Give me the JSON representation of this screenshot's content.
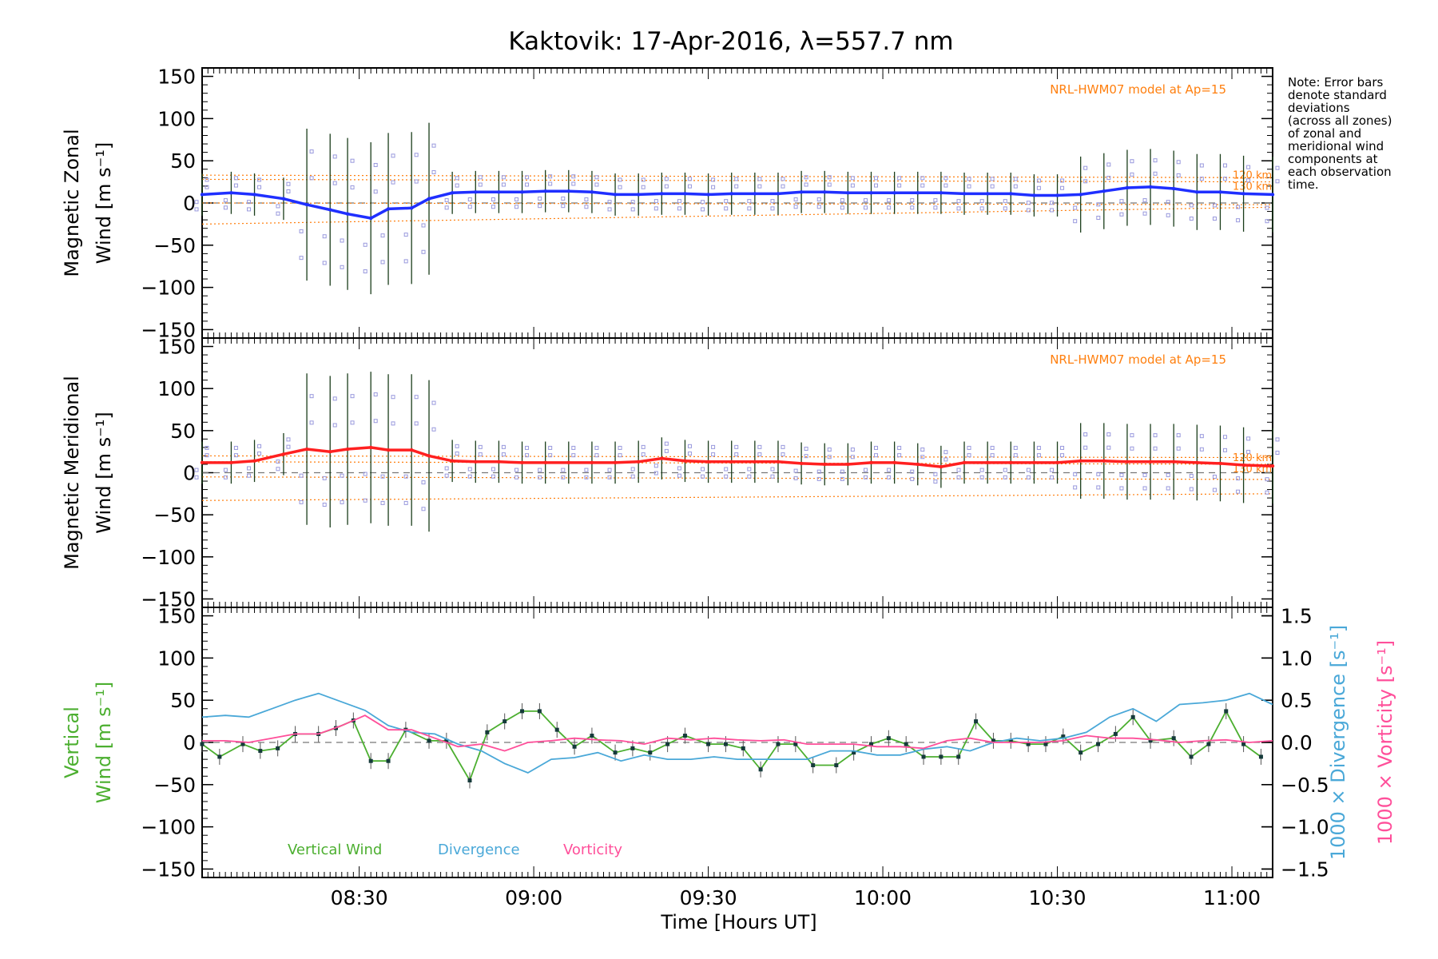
{
  "figure": {
    "title": "Kaktovik: 17-Apr-2016, λ=557.7 nm",
    "xlabel": "Time [Hours UT]",
    "note_lines": [
      "Note: Error bars",
      "denote standard",
      "deviations",
      "(across all zones)",
      "of zonal and",
      "meridional wind",
      "components at",
      "each observation",
      "time."
    ],
    "model_label": "NRL-HWM07 model at Ap=15",
    "alt_labels": [
      "120 km",
      "130 km"
    ]
  },
  "chart_data": [
    {
      "type": "line",
      "panel": "zonal",
      "ylabel": [
        "Magnetic Zonal",
        "Wind [m s⁻¹]"
      ],
      "ylim": [
        -160,
        160
      ],
      "yticks": [
        -150,
        -100,
        -50,
        0,
        50,
        100,
        150
      ],
      "xlim": [
        "08:03",
        "11:07"
      ],
      "xticks": [
        "08:30",
        "09:00",
        "09:30",
        "10:00",
        "10:30",
        "11:00"
      ],
      "colors": {
        "mean": "#1f2fff",
        "points": "#9999dd",
        "model": "#ff7f0e"
      },
      "series": [
        {
          "name": "mean",
          "x": [
            "08:03",
            "08:08",
            "08:12",
            "08:17",
            "08:21",
            "08:25",
            "08:28",
            "08:32",
            "08:35",
            "08:39",
            "08:42",
            "08:46",
            "08:50",
            "08:54",
            "08:58",
            "09:02",
            "09:06",
            "09:10",
            "09:14",
            "09:18",
            "09:22",
            "09:26",
            "09:30",
            "09:34",
            "09:38",
            "09:42",
            "09:46",
            "09:50",
            "09:54",
            "09:58",
            "10:02",
            "10:06",
            "10:10",
            "10:14",
            "10:18",
            "10:22",
            "10:26",
            "10:30",
            "10:34",
            "10:38",
            "10:42",
            "10:46",
            "10:50",
            "10:54",
            "10:58",
            "11:02",
            "11:07"
          ],
          "y": [
            10,
            12,
            10,
            5,
            -2,
            -8,
            -13,
            -18,
            -7,
            -6,
            5,
            12,
            13,
            13,
            13,
            14,
            14,
            13,
            10,
            10,
            11,
            11,
            10,
            11,
            11,
            11,
            13,
            13,
            12,
            12,
            12,
            12,
            12,
            11,
            11,
            11,
            9,
            9,
            10,
            14,
            18,
            19,
            17,
            13,
            13,
            11,
            10
          ]
        }
      ],
      "model_bounds": {
        "x": [
          "08:03",
          "11:07"
        ],
        "upper": [
          33,
          30
        ],
        "upper_lower": [
          28,
          25
        ],
        "lower_upper": [
          0,
          -2
        ],
        "lower": [
          -25,
          -5
        ]
      }
    },
    {
      "type": "line",
      "panel": "meridional",
      "ylabel": [
        "Magnetic Meridional",
        "Wind [m s⁻¹]"
      ],
      "ylim": [
        -160,
        160
      ],
      "yticks": [
        -150,
        -100,
        -50,
        0,
        50,
        100,
        150
      ],
      "xlim": [
        "08:03",
        "11:07"
      ],
      "colors": {
        "mean": "#ff2020",
        "points": "#9999dd",
        "model": "#ff7f0e"
      },
      "series": [
        {
          "name": "mean",
          "x": [
            "08:03",
            "08:08",
            "08:12",
            "08:17",
            "08:21",
            "08:25",
            "08:28",
            "08:32",
            "08:35",
            "08:39",
            "08:42",
            "08:46",
            "08:50",
            "08:54",
            "08:58",
            "09:02",
            "09:06",
            "09:10",
            "09:14",
            "09:18",
            "09:22",
            "09:26",
            "09:30",
            "09:34",
            "09:38",
            "09:42",
            "09:46",
            "09:50",
            "09:54",
            "09:58",
            "10:02",
            "10:06",
            "10:10",
            "10:14",
            "10:18",
            "10:22",
            "10:26",
            "10:30",
            "10:34",
            "10:38",
            "10:42",
            "10:46",
            "10:50",
            "10:54",
            "10:58",
            "11:02",
            "11:07"
          ],
          "y": [
            12,
            12,
            14,
            22,
            28,
            25,
            28,
            30,
            27,
            27,
            20,
            14,
            13,
            13,
            12,
            12,
            12,
            12,
            12,
            13,
            17,
            14,
            13,
            13,
            13,
            13,
            11,
            10,
            10,
            12,
            12,
            10,
            7,
            12,
            12,
            12,
            12,
            12,
            14,
            14,
            13,
            13,
            13,
            12,
            11,
            9,
            8
          ]
        }
      ],
      "model_bounds": {
        "x": [
          "08:03",
          "11:07"
        ],
        "upper": [
          20,
          18
        ],
        "upper_lower": [
          13,
          10
        ],
        "lower_upper": [
          -5,
          -8
        ],
        "lower": [
          -33,
          -25
        ]
      }
    },
    {
      "type": "line",
      "panel": "vertical",
      "ylabel": [
        "Vertical",
        "Wind [m s⁻¹]"
      ],
      "y2label": "1000 × Divergence [s⁻¹]",
      "y3label": "1000 × Vorticity [s⁻¹]",
      "ylim": [
        -160,
        160
      ],
      "yticks": [
        -150,
        -100,
        -50,
        0,
        50,
        100,
        150
      ],
      "y2lim": [
        -1.6,
        1.6
      ],
      "y2ticks": [
        -1.5,
        -1.0,
        -0.5,
        0.0,
        0.5,
        1.0,
        1.5
      ],
      "legend": [
        "Vertical Wind",
        "Divergence",
        "Vorticity"
      ],
      "colors": {
        "Vertical Wind": "#4caf30",
        "Divergence": "#4aa8d8",
        "Vorticity": "#ff4f9a"
      },
      "series": [
        {
          "name": "Vertical Wind",
          "x": [
            "08:03",
            "08:06",
            "08:10",
            "08:13",
            "08:16",
            "08:19",
            "08:23",
            "08:26",
            "08:29",
            "08:32",
            "08:35",
            "08:38",
            "08:42",
            "08:45",
            "08:49",
            "08:52",
            "08:55",
            "08:58",
            "09:01",
            "09:04",
            "09:07",
            "09:10",
            "09:14",
            "09:17",
            "09:20",
            "09:23",
            "09:26",
            "09:30",
            "09:33",
            "09:36",
            "09:39",
            "09:42",
            "09:45",
            "09:48",
            "09:52",
            "09:55",
            "09:58",
            "10:01",
            "10:04",
            "10:07",
            "10:10",
            "10:13",
            "10:16",
            "10:19",
            "10:22",
            "10:25",
            "10:28",
            "10:31",
            "10:34",
            "10:37",
            "10:40",
            "10:43",
            "10:46",
            "10:50",
            "10:53",
            "10:56",
            "10:59",
            "11:02",
            "11:05"
          ],
          "y": [
            -2,
            -17,
            -2,
            -10,
            -7,
            10,
            10,
            17,
            26,
            -22,
            -22,
            15,
            2,
            2,
            -45,
            12,
            25,
            37,
            37,
            15,
            -5,
            8,
            -12,
            -7,
            -12,
            -2,
            8,
            -2,
            -2,
            -7,
            -32,
            -2,
            -2,
            -27,
            -27,
            -12,
            -2,
            5,
            -2,
            -17,
            -17,
            -17,
            25,
            2,
            2,
            -2,
            -2,
            7,
            -12,
            -2,
            10,
            30,
            2,
            5,
            -17,
            -2,
            37,
            -2,
            -17
          ]
        },
        {
          "name": "Divergence",
          "x": [
            "08:03",
            "08:07",
            "08:11",
            "08:15",
            "08:19",
            "08:23",
            "08:27",
            "08:31",
            "08:35",
            "08:39",
            "08:43",
            "08:47",
            "08:51",
            "08:55",
            "08:59",
            "09:03",
            "09:07",
            "09:11",
            "09:15",
            "09:19",
            "09:23",
            "09:27",
            "09:31",
            "09:35",
            "09:39",
            "09:43",
            "09:47",
            "09:51",
            "09:55",
            "09:59",
            "10:03",
            "10:07",
            "10:11",
            "10:15",
            "10:19",
            "10:23",
            "10:27",
            "10:31",
            "10:35",
            "10:39",
            "10:43",
            "10:47",
            "10:51",
            "10:55",
            "10:59",
            "11:03",
            "11:07"
          ],
          "y": [
            0.3,
            0.32,
            0.3,
            0.4,
            0.5,
            0.58,
            0.48,
            0.38,
            0.2,
            0.12,
            0.1,
            -0.02,
            -0.1,
            -0.25,
            -0.36,
            -0.2,
            -0.18,
            -0.12,
            -0.22,
            -0.15,
            -0.2,
            -0.2,
            -0.17,
            -0.2,
            -0.2,
            -0.2,
            -0.2,
            -0.1,
            -0.1,
            -0.15,
            -0.15,
            -0.08,
            -0.05,
            -0.1,
            0.0,
            0.05,
            0.02,
            0.05,
            0.12,
            0.3,
            0.4,
            0.25,
            0.45,
            0.47,
            0.5,
            0.58,
            0.45
          ]
        },
        {
          "name": "Vorticity",
          "x": [
            "08:03",
            "08:07",
            "08:11",
            "08:15",
            "08:19",
            "08:23",
            "08:27",
            "08:31",
            "08:35",
            "08:39",
            "08:43",
            "08:47",
            "08:51",
            "08:55",
            "08:59",
            "09:03",
            "09:07",
            "09:11",
            "09:15",
            "09:19",
            "09:23",
            "09:27",
            "09:31",
            "09:35",
            "09:39",
            "09:43",
            "09:47",
            "09:51",
            "09:55",
            "09:59",
            "10:03",
            "10:07",
            "10:11",
            "10:15",
            "10:19",
            "10:23",
            "10:27",
            "10:31",
            "10:35",
            "10:39",
            "10:43",
            "10:47",
            "10:51",
            "10:55",
            "10:59",
            "11:03",
            "11:07"
          ],
          "y": [
            0.02,
            0.02,
            0.0,
            0.05,
            0.1,
            0.1,
            0.2,
            0.32,
            0.15,
            0.15,
            0.05,
            -0.05,
            -0.02,
            -0.1,
            0.0,
            0.02,
            0.05,
            0.03,
            0.02,
            -0.02,
            0.05,
            0.03,
            0.05,
            0.03,
            0.02,
            0.03,
            -0.02,
            -0.02,
            -0.02,
            -0.05,
            -0.05,
            -0.07,
            0.02,
            0.05,
            0.0,
            0.0,
            0.0,
            0.02,
            0.08,
            0.05,
            0.05,
            0.03,
            0.0,
            0.02,
            0.03,
            0.0,
            0.02
          ]
        }
      ]
    }
  ]
}
